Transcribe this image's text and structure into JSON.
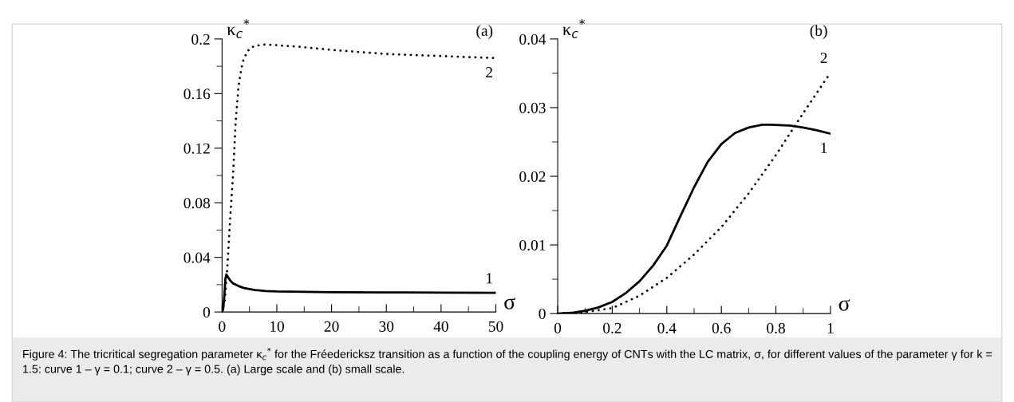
{
  "chart_data": [
    {
      "type": "line",
      "ylabel": "κ$_{c}$$^{*}$",
      "xlabel": "σ",
      "annotations": [
        "(a)",
        "1",
        "2"
      ],
      "xlim": [
        0,
        50
      ],
      "ylim": [
        0,
        0.2
      ],
      "xticks": [
        0,
        {
          "value": 5,
          "label": null
        },
        10,
        {
          "value": 15,
          "label": null
        },
        20,
        {
          "value": 25,
          "label": null
        },
        30,
        {
          "value": 35,
          "label": null
        },
        40,
        {
          "value": 45,
          "label": null
        },
        50
      ],
      "yticks": [
        0,
        {
          "value": 0.02,
          "label": null
        },
        0.04,
        {
          "value": 0.06,
          "label": null
        },
        0.08,
        {
          "value": 0.1,
          "label": null
        },
        0.12,
        {
          "value": 0.14,
          "label": null
        },
        0.16,
        {
          "value": 0.18,
          "label": null
        },
        0.2
      ],
      "grid": false,
      "legend": false,
      "series": [
        {
          "color": "#000000",
          "line_style": "solid",
          "x": [
            0,
            0.2,
            0.4,
            0.6,
            0.78,
            1,
            1.5,
            2,
            3,
            4,
            6,
            8,
            10,
            15,
            20,
            30,
            40,
            50
          ],
          "values": [
            0,
            0.002,
            0.011,
            0.024,
            0.0275,
            0.026,
            0.023,
            0.021,
            0.019,
            0.0175,
            0.016,
            0.0153,
            0.015,
            0.0147,
            0.0145,
            0.0143,
            0.0142,
            0.014
          ]
        },
        {
          "color": "#000000",
          "line_style": "dotted",
          "x": [
            0,
            0.5,
            1,
            1.5,
            2,
            2.5,
            3,
            3.5,
            4,
            5,
            6,
            8,
            10,
            15,
            20,
            30,
            40,
            50
          ],
          "values": [
            0,
            0.0086,
            0.035,
            0.07,
            0.1,
            0.14,
            0.165,
            0.178,
            0.186,
            0.193,
            0.195,
            0.196,
            0.1955,
            0.194,
            0.192,
            0.189,
            0.1875,
            0.186
          ]
        }
      ]
    },
    {
      "type": "line",
      "ylabel": "κ$_{c}$$^{*}$",
      "xlabel": "σ",
      "annotations": [
        "(b)",
        "1",
        "2",
        "Figure 4: The tricritical segregation parameter κ$_{c}$$^{*}$ for the Fréedericksz transition as a function of the coupling energy of CNTs with the LC matrix, σ, for different values of the parameter γ for k = 1.5: curve 1 – γ = 0.1; curve 2 – γ = 0.5. (a) Large scale and (b) small scale."
      ],
      "xlim": [
        0,
        1
      ],
      "ylim": [
        0,
        0.04
      ],
      "xticks": [
        0,
        {
          "value": 0.1,
          "label": null
        },
        0.2,
        {
          "value": 0.3,
          "label": null
        },
        0.4,
        {
          "value": 0.5,
          "label": null
        },
        0.6,
        {
          "value": 0.7,
          "label": null
        },
        0.8,
        {
          "value": 0.9,
          "label": null
        },
        1
      ],
      "yticks": [
        0,
        {
          "value": 0.005,
          "label": null
        },
        0.01,
        {
          "value": 0.015,
          "label": null
        },
        0.02,
        {
          "value": 0.025,
          "label": null
        },
        0.03,
        {
          "value": 0.035,
          "label": null
        },
        0.04
      ],
      "grid": false,
      "legend": false,
      "series": [
        {
          "color": "#000000",
          "line_style": "solid",
          "x": [
            0,
            0.05,
            0.1,
            0.15,
            0.2,
            0.25,
            0.3,
            0.35,
            0.4,
            0.45,
            0.5,
            0.55,
            0.6,
            0.65,
            0.7,
            0.75,
            0.78,
            0.85,
            0.9,
            0.95,
            1
          ],
          "values": [
            0,
            0.0001,
            0.0004,
            0.0009,
            0.0017,
            0.003,
            0.0047,
            0.007,
            0.0099,
            0.0142,
            0.0184,
            0.0221,
            0.0247,
            0.0263,
            0.0271,
            0.0275,
            0.0275,
            0.0274,
            0.0271,
            0.0267,
            0.0262
          ]
        },
        {
          "color": "#000000",
          "line_style": "dotted",
          "x": [
            0,
            0.1,
            0.2,
            0.3,
            0.4,
            0.5,
            0.6,
            0.7,
            0.8,
            0.9,
            1
          ],
          "values": [
            0,
            0.0002,
            0.0008,
            0.0026,
            0.0052,
            0.0086,
            0.0126,
            0.0175,
            0.0231,
            0.0292,
            0.0351
          ]
        }
      ]
    }
  ]
}
